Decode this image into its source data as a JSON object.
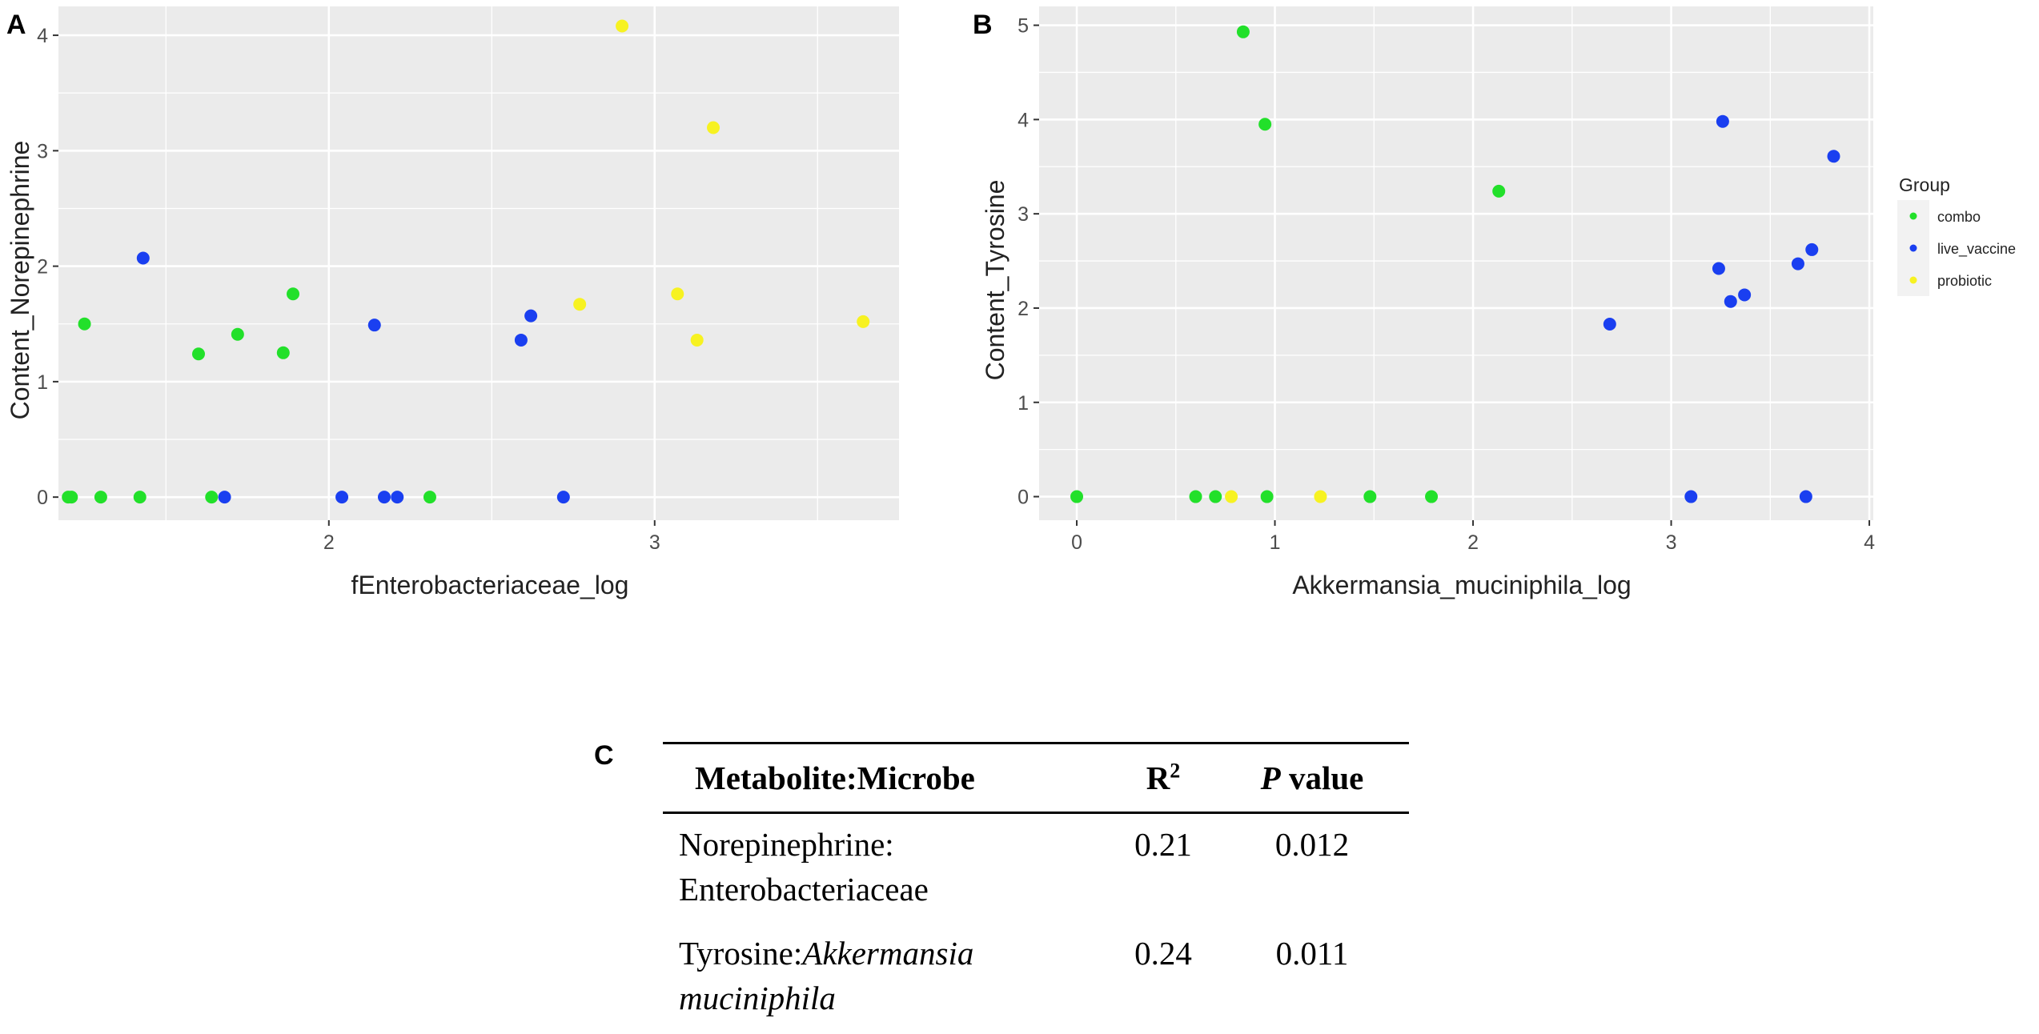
{
  "panels": {
    "a_letter": "A",
    "b_letter": "B",
    "c_letter": "C"
  },
  "colors": {
    "combo": "#22e02a",
    "live_vaccine": "#1a3ff0",
    "probiotic": "#f7f221",
    "panel_bg": "#ebebeb",
    "grid": "#ffffff"
  },
  "legend": {
    "title": "Group",
    "items": [
      {
        "label": "combo",
        "key": "combo"
      },
      {
        "label": "live_vaccine",
        "key": "live_vaccine"
      },
      {
        "label": "probiotic",
        "key": "probiotic"
      }
    ]
  },
  "chart_data": [
    {
      "type": "scatter",
      "panel": "A",
      "xlabel": "fEnterobacteriaceae_log",
      "ylabel": "Content_Norepinephrine",
      "xlim": [
        1.17,
        3.75
      ],
      "ylim": [
        -0.2,
        4.25
      ],
      "xticks": [
        2,
        3
      ],
      "yticks": [
        0,
        1,
        2,
        3,
        4
      ],
      "series": [
        {
          "name": "combo",
          "points": [
            [
              1.2,
              0
            ],
            [
              1.21,
              0
            ],
            [
              1.25,
              1.5
            ],
            [
              1.3,
              0
            ],
            [
              1.42,
              0
            ],
            [
              1.6,
              1.24
            ],
            [
              1.64,
              0
            ],
            [
              1.72,
              1.41
            ],
            [
              1.86,
              1.25
            ],
            [
              1.89,
              1.76
            ],
            [
              2.31,
              0
            ]
          ]
        },
        {
          "name": "live_vaccine",
          "points": [
            [
              1.43,
              2.07
            ],
            [
              1.68,
              0
            ],
            [
              2.04,
              0
            ],
            [
              2.14,
              1.49
            ],
            [
              2.17,
              0
            ],
            [
              2.21,
              0
            ],
            [
              2.59,
              1.36
            ],
            [
              2.62,
              1.57
            ],
            [
              2.72,
              0
            ]
          ]
        },
        {
          "name": "probiotic",
          "points": [
            [
              2.77,
              1.67
            ],
            [
              2.9,
              4.08
            ],
            [
              3.07,
              1.76
            ],
            [
              3.13,
              1.36
            ],
            [
              3.18,
              3.2
            ],
            [
              3.64,
              1.52
            ]
          ]
        }
      ]
    },
    {
      "type": "scatter",
      "panel": "B",
      "xlabel": "Akkermansia_muciniphila_log",
      "ylabel": "Content_Tyrosine",
      "xlim": [
        -0.19,
        4.02
      ],
      "ylim": [
        -0.25,
        5.2
      ],
      "xticks": [
        0,
        1,
        2,
        3,
        4
      ],
      "yticks": [
        0,
        1,
        2,
        3,
        4,
        5
      ],
      "series": [
        {
          "name": "combo",
          "points": [
            [
              0,
              0
            ],
            [
              0.6,
              0
            ],
            [
              0.7,
              0
            ],
            [
              0.84,
              4.93
            ],
            [
              0.95,
              3.95
            ],
            [
              0.96,
              0
            ],
            [
              1.48,
              0
            ],
            [
              1.79,
              0
            ],
            [
              2.13,
              3.24
            ]
          ]
        },
        {
          "name": "live_vaccine",
          "points": [
            [
              2.69,
              1.83
            ],
            [
              3.1,
              0
            ],
            [
              3.24,
              2.42
            ],
            [
              3.26,
              3.98
            ],
            [
              3.3,
              2.07
            ],
            [
              3.37,
              2.14
            ],
            [
              3.64,
              2.47
            ],
            [
              3.68,
              0
            ],
            [
              3.71,
              2.62
            ],
            [
              3.82,
              3.61
            ]
          ]
        },
        {
          "name": "probiotic",
          "points": [
            [
              0.78,
              0
            ],
            [
              1.23,
              0
            ]
          ]
        }
      ]
    }
  ],
  "table": {
    "header": {
      "col1": "Metabolite:Microbe",
      "col2_base": "R",
      "col2_sup": "2",
      "col3_italic": "P",
      "col3_rest": " value"
    },
    "rows": [
      {
        "line1": "Norepinephrine:",
        "line2": "Enterobacteriaceae",
        "r2": "0.21",
        "p": "0.012"
      },
      {
        "line1_plain": "Tyrosine:",
        "line1_italic": "Akkermansia",
        "line2": "muciniphila",
        "r2": "0.24",
        "p": "0.011"
      }
    ]
  }
}
